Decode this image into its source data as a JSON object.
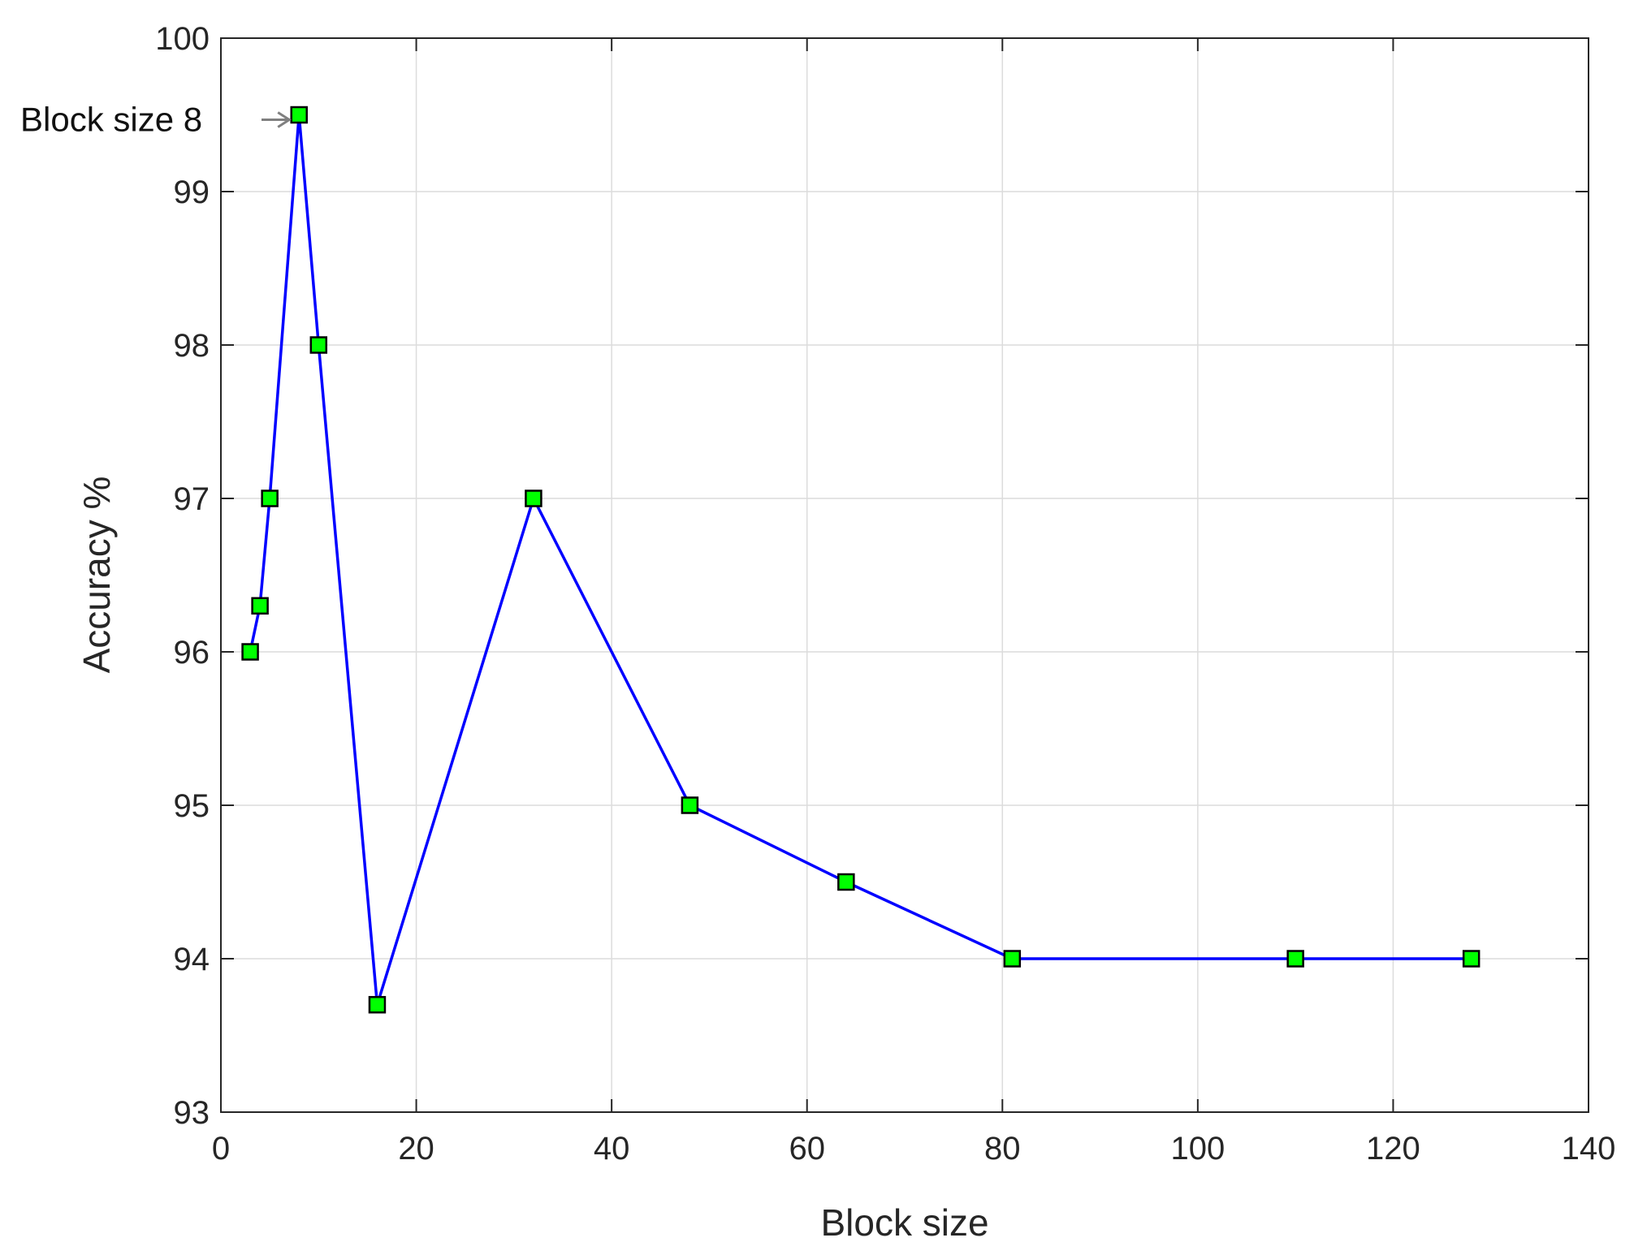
{
  "chart_data": {
    "type": "line",
    "title": "",
    "xlabel": "Block size",
    "ylabel": "Accuracy %",
    "xlim": [
      0,
      140
    ],
    "ylim": [
      93,
      100
    ],
    "xticks": [
      0,
      20,
      40,
      60,
      80,
      100,
      120,
      140
    ],
    "yticks": [
      93,
      94,
      95,
      96,
      97,
      98,
      99,
      100
    ],
    "grid": true,
    "series": [
      {
        "x": [
          3,
          4,
          5,
          8,
          10,
          16,
          32,
          48,
          64,
          81,
          110,
          128
        ],
        "y": [
          96,
          96.3,
          97,
          99.5,
          98,
          93.7,
          97,
          95,
          94.5,
          94,
          94,
          94
        ],
        "line_color": "#0000ff",
        "marker": "square",
        "marker_color": "#00ff00",
        "marker_edge_color": "#000000"
      }
    ],
    "annotations": [
      {
        "text": "Block size 8",
        "x": 8,
        "y": 99.5,
        "arrow": true
      }
    ]
  }
}
